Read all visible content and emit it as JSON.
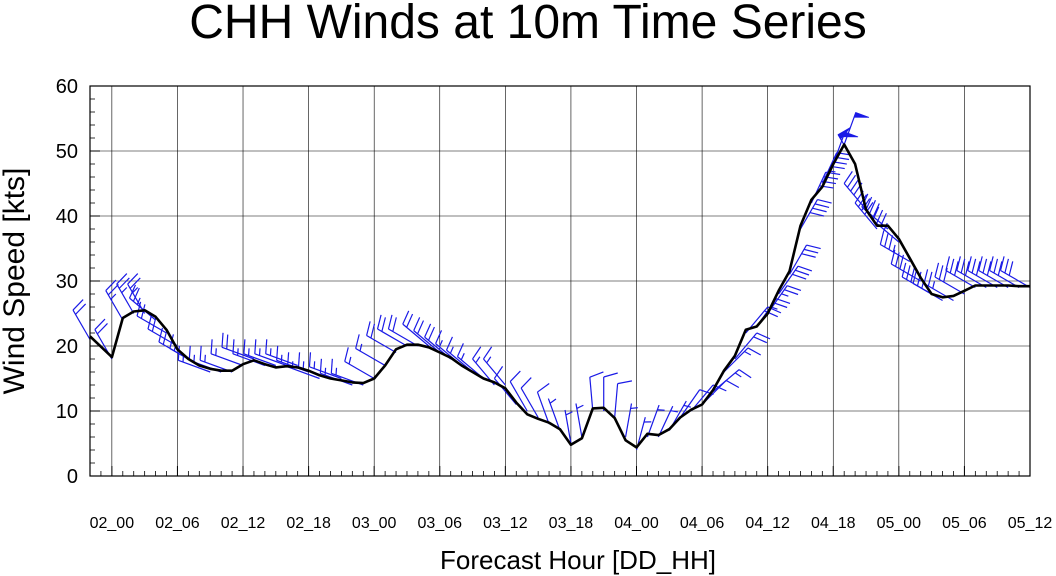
{
  "chart_data": {
    "type": "line",
    "title": "CHH Winds at 10m Time Series",
    "xlabel": "Forecast Hour [DD_HH]",
    "ylabel": "Wind Speed [kts]",
    "ylim": [
      0,
      60
    ],
    "yticks": [
      0,
      10,
      20,
      30,
      40,
      50,
      60
    ],
    "xlim": [
      -2,
      84
    ],
    "xticks": [
      {
        "hour": 0,
        "label": "02_00"
      },
      {
        "hour": 6,
        "label": "02_06"
      },
      {
        "hour": 12,
        "label": "02_12"
      },
      {
        "hour": 18,
        "label": "02_18"
      },
      {
        "hour": 24,
        "label": "03_00"
      },
      {
        "hour": 30,
        "label": "03_06"
      },
      {
        "hour": 36,
        "label": "03_12"
      },
      {
        "hour": 42,
        "label": "03_18"
      },
      {
        "hour": 48,
        "label": "04_00"
      },
      {
        "hour": 54,
        "label": "04_06"
      },
      {
        "hour": 60,
        "label": "04_12"
      },
      {
        "hour": 66,
        "label": "04_18"
      },
      {
        "hour": 72,
        "label": "05_00"
      },
      {
        "hour": 78,
        "label": "05_06"
      },
      {
        "hour": 84,
        "label": "05_12"
      }
    ],
    "grid": true,
    "series": [
      {
        "color": "#000000",
        "x": [
          -2,
          0,
          1,
          2,
          3,
          4,
          5,
          6,
          7,
          8,
          9,
          10,
          11,
          12,
          13,
          14,
          15,
          16,
          17,
          18,
          19,
          20,
          21,
          22,
          23,
          24,
          25,
          26,
          27,
          28,
          29,
          30,
          31,
          32,
          33,
          34,
          35,
          36,
          37,
          38,
          39,
          40,
          41,
          42,
          43,
          44,
          45,
          46,
          47,
          48,
          49,
          50,
          51,
          52,
          53,
          54,
          55,
          56,
          57,
          58,
          59,
          60,
          61,
          62,
          63,
          64,
          65,
          66,
          67,
          68,
          69,
          70,
          71,
          72,
          73,
          74,
          75,
          76,
          77,
          78,
          79,
          80,
          81,
          82,
          83,
          84
        ],
        "y": [
          21.5,
          18.3,
          24.3,
          25.3,
          25.5,
          24.5,
          22.5,
          19.5,
          18,
          17,
          16.5,
          16.2,
          16.2,
          17.2,
          17.8,
          17.2,
          16.7,
          16.9,
          16.7,
          16.2,
          15.5,
          15,
          14.7,
          14.4,
          14.3,
          15,
          17,
          19.5,
          20.2,
          20.2,
          19.8,
          19,
          18.2,
          17,
          16,
          15,
          14.4,
          13.5,
          11.3,
          9.5,
          8.8,
          8.2,
          7.2,
          4.8,
          5.8,
          10.4,
          10.5,
          8.9,
          5.5,
          4.4,
          6.5,
          6.3,
          7.2,
          9,
          10.2,
          11,
          13.2,
          16.2,
          18.5,
          22.5,
          23,
          25,
          28.5,
          31.5,
          38.5,
          42.5,
          44.5,
          48,
          51,
          48,
          41,
          38.5,
          38.5,
          36.5,
          33.5,
          30.5,
          28,
          27.5,
          27.7,
          28.5,
          29.3,
          29.3,
          29.3,
          29.3,
          29.2,
          29.2
        ]
      }
    ],
    "wind_barbs": {
      "color": "#1a1ae6",
      "x": [
        -2,
        0,
        1,
        2,
        3,
        4,
        5,
        6,
        7,
        8,
        9,
        10,
        11,
        12,
        13,
        14,
        15,
        16,
        17,
        18,
        19,
        20,
        21,
        22,
        23,
        24,
        25,
        26,
        27,
        28,
        29,
        30,
        31,
        32,
        33,
        34,
        35,
        36,
        37,
        38,
        39,
        40,
        41,
        42,
        43,
        44,
        45,
        46,
        47,
        48,
        49,
        50,
        51,
        52,
        53,
        54,
        55,
        56,
        57,
        58,
        59,
        60,
        61,
        62,
        63,
        64,
        65,
        66,
        67,
        68,
        69,
        70,
        71,
        72,
        73,
        74,
        75,
        76,
        77,
        78,
        79,
        80,
        81,
        82,
        83,
        84
      ],
      "speed": [
        21,
        18,
        24,
        25,
        25,
        24,
        22,
        20,
        18,
        17,
        16,
        16,
        16,
        17,
        18,
        17,
        17,
        17,
        17,
        16,
        15,
        15,
        15,
        14,
        14,
        15,
        17,
        19,
        20,
        20,
        20,
        19,
        18,
        17,
        16,
        15,
        14,
        14,
        11,
        10,
        9,
        8,
        7,
        5,
        6,
        10,
        10,
        9,
        6,
        4,
        6,
        6,
        7,
        9,
        10,
        11,
        13,
        16,
        18,
        22,
        23,
        25,
        28,
        31,
        38,
        42,
        45,
        48,
        51,
        48,
        41,
        38,
        38,
        36,
        33,
        30,
        28,
        27,
        27,
        28,
        29,
        29,
        29,
        29,
        29,
        29
      ],
      "direction": [
        330,
        330,
        330,
        330,
        330,
        310,
        300,
        300,
        300,
        300,
        290,
        290,
        290,
        290,
        290,
        290,
        290,
        290,
        290,
        290,
        290,
        290,
        290,
        290,
        290,
        300,
        300,
        300,
        300,
        300,
        310,
        310,
        310,
        310,
        310,
        310,
        320,
        320,
        320,
        330,
        330,
        340,
        340,
        350,
        350,
        355,
        0,
        5,
        10,
        15,
        20,
        25,
        30,
        35,
        40,
        45,
        50,
        45,
        40,
        40,
        35,
        35,
        35,
        30,
        30,
        25,
        25,
        20,
        20,
        330,
        320,
        320,
        310,
        310,
        300,
        300,
        300,
        300,
        300,
        300,
        300,
        300,
        300,
        300,
        300,
        300
      ]
    }
  }
}
